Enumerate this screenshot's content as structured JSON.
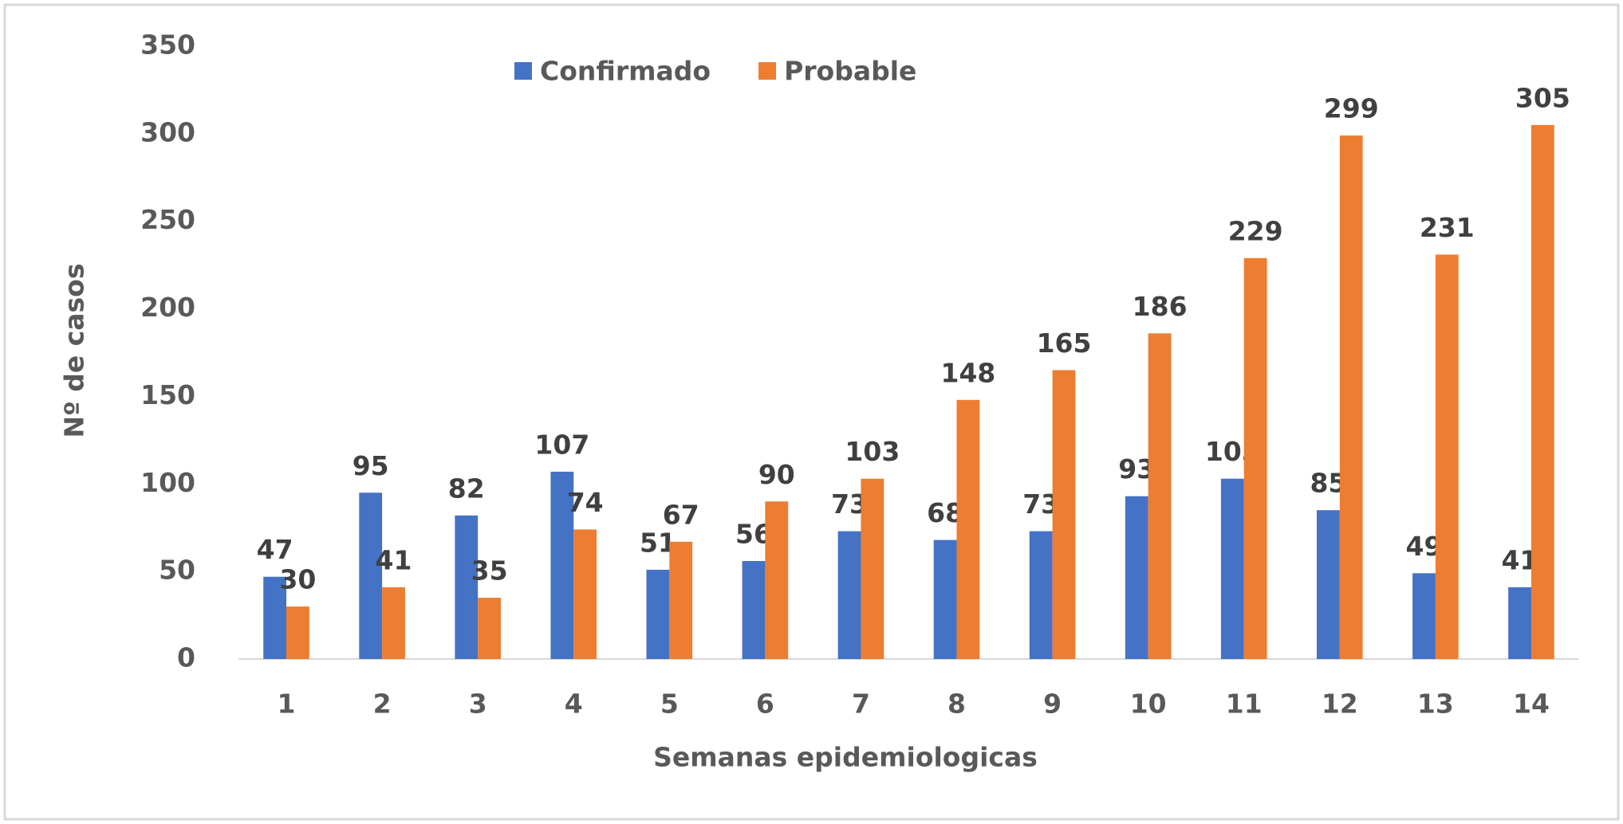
{
  "chart_data": {
    "type": "bar",
    "x_label": "Semanas epidemiologicas",
    "y_label": "Nº de casos",
    "categories": [
      "1",
      "2",
      "3",
      "4",
      "5",
      "6",
      "7",
      "8",
      "9",
      "10",
      "11",
      "12",
      "13",
      "14"
    ],
    "series": [
      {
        "name": "Confirmado",
        "color": "#4472c4",
        "values": [
          47,
          95,
          82,
          107,
          51,
          56,
          73,
          68,
          73,
          93,
          103,
          85,
          49,
          41
        ]
      },
      {
        "name": "Probable",
        "color": "#ed7d31",
        "values": [
          30,
          41,
          35,
          74,
          67,
          90,
          103,
          148,
          165,
          186,
          229,
          299,
          231,
          305
        ]
      }
    ],
    "ylim": [
      0,
      350
    ],
    "yticks": [
      0,
      50,
      100,
      150,
      200,
      250,
      300,
      350
    ],
    "grid": false,
    "legend": "top"
  }
}
